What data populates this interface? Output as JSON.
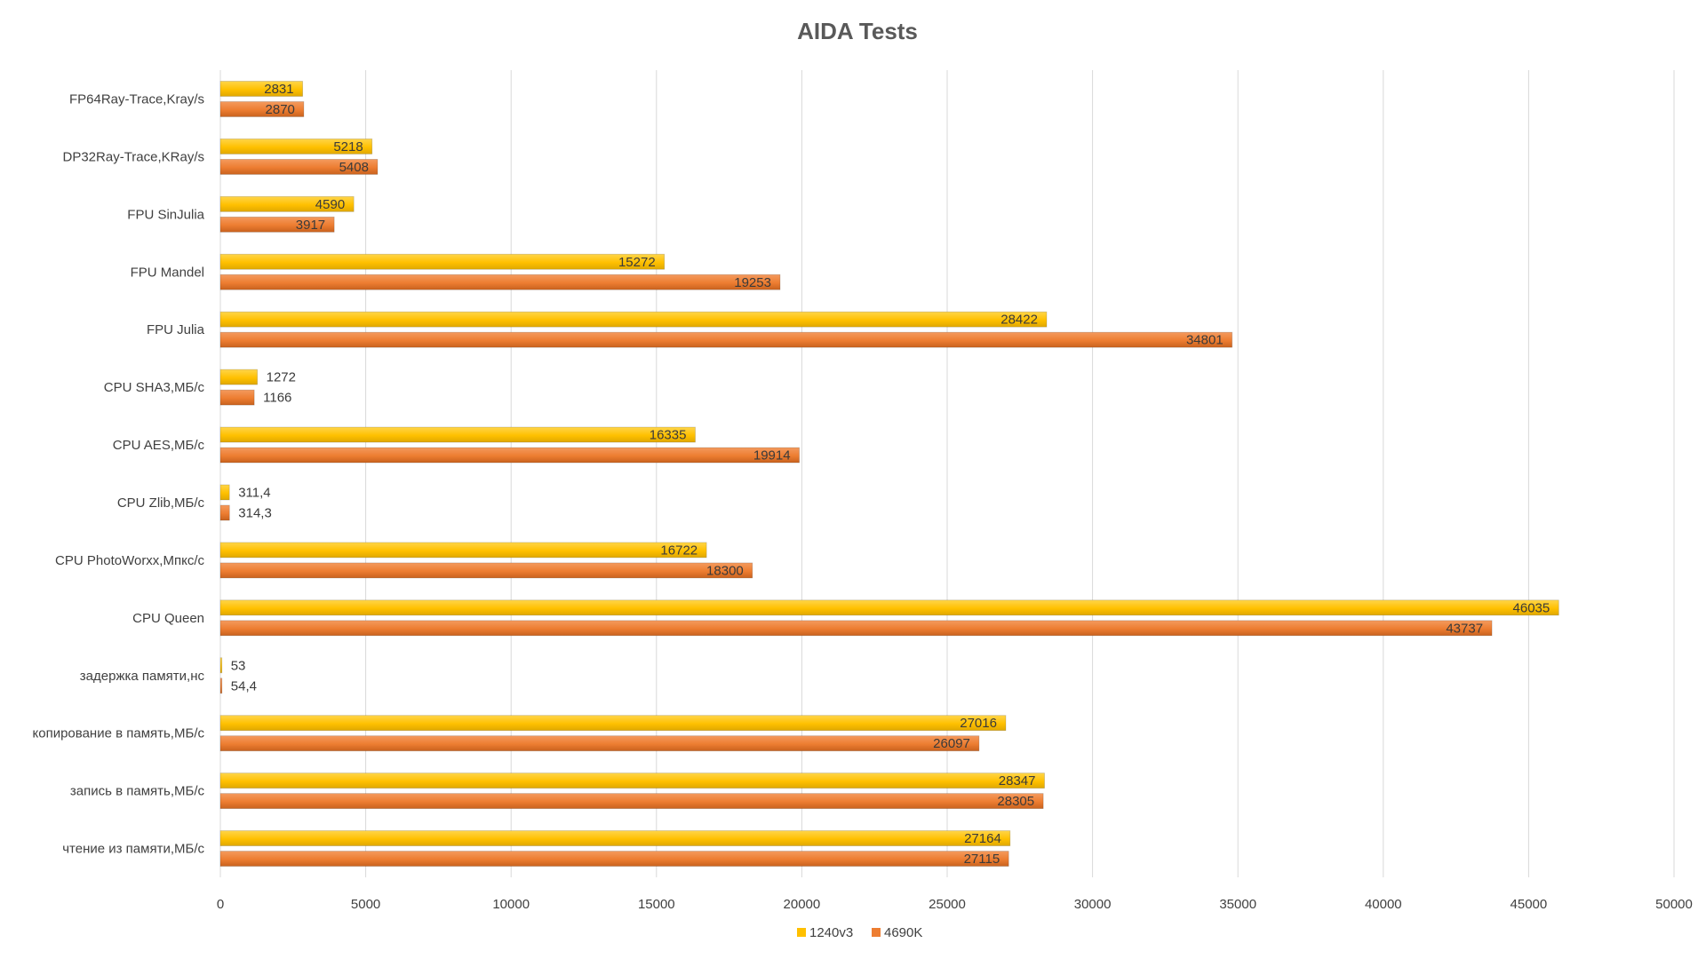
{
  "chart_data": {
    "type": "bar",
    "orientation": "horizontal",
    "title": "AIDA Tests",
    "xlabel": "",
    "ylabel": "",
    "xlim": [
      0,
      50000
    ],
    "x_ticks": [
      0,
      5000,
      10000,
      15000,
      20000,
      25000,
      30000,
      35000,
      40000,
      45000,
      50000
    ],
    "x_tick_labels": [
      "0",
      "5000",
      "10000",
      "15000",
      "20000",
      "25000",
      "30000",
      "35000",
      "40000",
      "45000",
      "50000"
    ],
    "grid": true,
    "legend_position": "bottom",
    "categories": [
      "FP64Ray-Trace,Kray/s",
      "DP32Ray-Trace,KRay/s",
      "FPU SinJulia",
      "FPU Mandel",
      "FPU Julia",
      "CPU SHA3,МБ/с",
      "CPU AES,МБ/с",
      "CPU Zlib,МБ/с",
      "CPU PhotoWorxx,Мпкс/с",
      "CPU Queen",
      "задержка памяти,нс",
      "копирование в память,МБ/с",
      "запись в память,МБ/с",
      "чтение из памяти,МБ/с"
    ],
    "series": [
      {
        "name": "1240v3",
        "color": "#FFC000",
        "values": [
          2831,
          5218,
          4590,
          15272,
          28422,
          1272,
          16335,
          311.4,
          16722,
          46035,
          53,
          27016,
          28347,
          27164
        ],
        "labels": [
          "2831",
          "5218",
          "4590",
          "15272",
          "28422",
          "1272",
          "16335",
          "311,4",
          "16722",
          "46035",
          "53",
          "27016",
          "28347",
          "27164"
        ]
      },
      {
        "name": "4690K",
        "color": "#ED7D31",
        "values": [
          2870,
          5408,
          3917,
          19253,
          34801,
          1166,
          19914,
          314.3,
          18300,
          43737,
          54.4,
          26097,
          28305,
          27115
        ],
        "labels": [
          "2870",
          "5408",
          "3917",
          "19253",
          "34801",
          "1166",
          "19914",
          "314,3",
          "18300",
          "43737",
          "54,4",
          "26097",
          "28305",
          "27115"
        ]
      }
    ]
  }
}
